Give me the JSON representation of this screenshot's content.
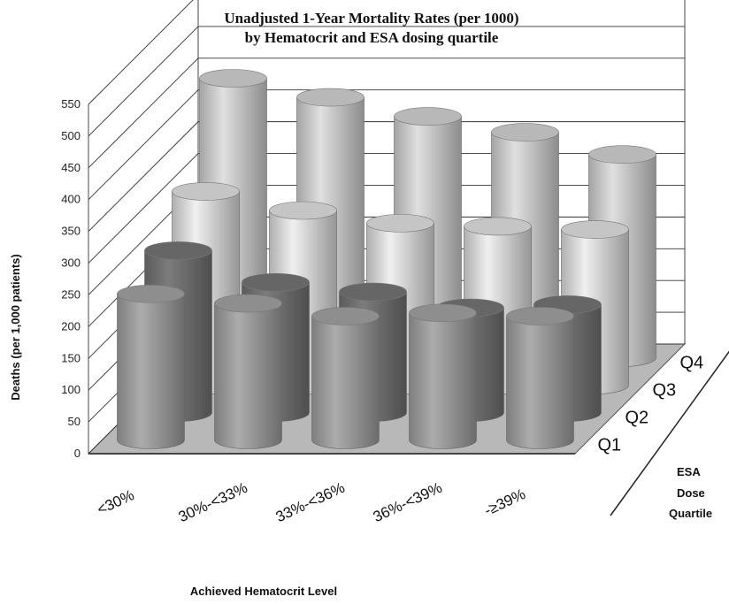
{
  "chart_data": {
    "type": "bar",
    "subtype": "3d-cylinder",
    "title_line1": "Unadjusted 1-Year Mortality Rates (per 1000)",
    "title_line2": "by Hematocrit and ESA dosing quartile",
    "ylabel": "Deaths (per 1,000 patients)",
    "xlabel": "Achieved Hematocrit Level",
    "depth_label_lines": [
      "ESA",
      "Dose",
      "Quartile"
    ],
    "ylim": [
      0,
      550
    ],
    "yticks": [
      0,
      50,
      100,
      150,
      200,
      250,
      300,
      350,
      400,
      450,
      500,
      550
    ],
    "categories": [
      "<30%",
      "30%-<33%",
      "33%-<36%",
      "36%-<39%",
      "-≥39%"
    ],
    "series": [
      {
        "name": "Q1",
        "values": [
          230,
          215,
          195,
          200,
          195
        ]
      },
      {
        "name": "Q2",
        "values": [
          255,
          205,
          190,
          165,
          170
        ]
      },
      {
        "name": "Q3",
        "values": [
          305,
          275,
          255,
          250,
          245
        ]
      },
      {
        "name": "Q4",
        "values": [
          440,
          410,
          380,
          355,
          320
        ]
      }
    ],
    "series_colors": [
      "#9a9a9a",
      "#6f6f6f",
      "#d6d6d6",
      "#c8c8c8"
    ],
    "grid": true
  }
}
